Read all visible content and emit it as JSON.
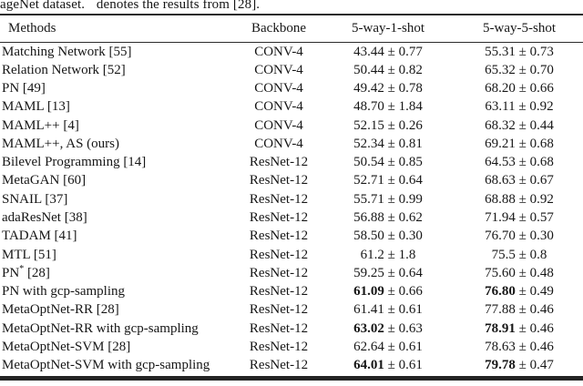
{
  "caption": {
    "before": "ageNet dataset. ",
    "star": "*",
    "after": " denotes the results from [28]."
  },
  "colors": {
    "ink": "#161616",
    "rule": "#2c2c2c",
    "background": "#ffffff"
  },
  "table": {
    "headers": {
      "method": "Methods",
      "backbone": "Backbone",
      "one_shot": "5-way-1-shot",
      "five_shot": "5-way-5-shot"
    },
    "rows": [
      {
        "method": "Matching Network [55]",
        "backbone": "CONV-4",
        "one_shot": {
          "mean": "43.44",
          "err": "± 0.77",
          "bold": false
        },
        "five_shot": {
          "mean": "55.31",
          "err": "± 0.73",
          "bold": false
        }
      },
      {
        "method": "Relation Network [52]",
        "backbone": "CONV-4",
        "one_shot": {
          "mean": "50.44",
          "err": "± 0.82",
          "bold": false
        },
        "five_shot": {
          "mean": "65.32",
          "err": "± 0.70",
          "bold": false
        }
      },
      {
        "method": "PN [49]",
        "backbone": "CONV-4",
        "one_shot": {
          "mean": "49.42",
          "err": "± 0.78",
          "bold": false
        },
        "five_shot": {
          "mean": "68.20",
          "err": "± 0.66",
          "bold": false
        }
      },
      {
        "method": "MAML [13]",
        "backbone": "CONV-4",
        "one_shot": {
          "mean": "48.70",
          "err": "± 1.84",
          "bold": false
        },
        "five_shot": {
          "mean": "63.11",
          "err": "± 0.92",
          "bold": false
        }
      },
      {
        "method": "MAML++ [4]",
        "backbone": "CONV-4",
        "one_shot": {
          "mean": "52.15",
          "err": "± 0.26",
          "bold": false
        },
        "five_shot": {
          "mean": "68.32",
          "err": "± 0.44",
          "bold": false
        }
      },
      {
        "method": "MAML++, AS (ours)",
        "backbone": "CONV-4",
        "one_shot": {
          "mean": "52.34",
          "err": "± 0.81",
          "bold": false
        },
        "five_shot": {
          "mean": "69.21",
          "err": "± 0.68",
          "bold": false
        }
      },
      {
        "method": "Bilevel Programming [14]",
        "backbone": "ResNet-12",
        "one_shot": {
          "mean": "50.54",
          "err": "± 0.85",
          "bold": false
        },
        "five_shot": {
          "mean": "64.53",
          "err": "± 0.68",
          "bold": false
        }
      },
      {
        "method": "MetaGAN [60]",
        "backbone": "ResNet-12",
        "one_shot": {
          "mean": "52.71",
          "err": "± 0.64",
          "bold": false
        },
        "five_shot": {
          "mean": "68.63",
          "err": "± 0.67",
          "bold": false
        }
      },
      {
        "method": "SNAIL [37]",
        "backbone": "ResNet-12",
        "one_shot": {
          "mean": "55.71",
          "err": "± 0.99",
          "bold": false
        },
        "five_shot": {
          "mean": "68.88",
          "err": "± 0.92",
          "bold": false
        }
      },
      {
        "method": "adaResNet [38]",
        "backbone": "ResNet-12",
        "one_shot": {
          "mean": "56.88",
          "err": "± 0.62",
          "bold": false
        },
        "five_shot": {
          "mean": "71.94",
          "err": "± 0.57",
          "bold": false
        }
      },
      {
        "method": "TADAM [41]",
        "backbone": "ResNet-12",
        "one_shot": {
          "mean": "58.50",
          "err": "± 0.30",
          "bold": false
        },
        "five_shot": {
          "mean": "76.70",
          "err": "± 0.30",
          "bold": false
        }
      },
      {
        "method": "MTL [51]",
        "backbone": "ResNet-12",
        "one_shot": {
          "mean": "61.2",
          "err": "± 1.8",
          "bold": false
        },
        "five_shot": {
          "mean": "75.5",
          "err": "± 0.8",
          "bold": false
        }
      },
      {
        "method": "PN* [28]",
        "backbone": "ResNet-12",
        "one_shot": {
          "mean": "59.25",
          "err": "± 0.64",
          "bold": false
        },
        "five_shot": {
          "mean": "75.60",
          "err": "± 0.48",
          "bold": false
        }
      },
      {
        "method": "PN with gcp-sampling",
        "backbone": "ResNet-12",
        "one_shot": {
          "mean": "61.09",
          "err": "± 0.66",
          "bold": true
        },
        "five_shot": {
          "mean": "76.80",
          "err": "± 0.49",
          "bold": true
        }
      },
      {
        "method": "MetaOptNet-RR [28]",
        "backbone": "ResNet-12",
        "one_shot": {
          "mean": "61.41",
          "err": "± 0.61",
          "bold": false
        },
        "five_shot": {
          "mean": "77.88",
          "err": "± 0.46",
          "bold": false
        }
      },
      {
        "method": "MetaOptNet-RR with gcp-sampling",
        "backbone": "ResNet-12",
        "one_shot": {
          "mean": "63.02",
          "err": "± 0.63",
          "bold": true
        },
        "five_shot": {
          "mean": "78.91",
          "err": "± 0.46",
          "bold": true
        }
      },
      {
        "method": "MetaOptNet-SVM [28]",
        "backbone": "ResNet-12",
        "one_shot": {
          "mean": "62.64",
          "err": "± 0.61",
          "bold": false
        },
        "five_shot": {
          "mean": "78.63",
          "err": "± 0.46",
          "bold": false
        }
      },
      {
        "method": "MetaOptNet-SVM with gcp-sampling",
        "backbone": "ResNet-12",
        "one_shot": {
          "mean": "64.01",
          "err": "± 0.61",
          "bold": true
        },
        "five_shot": {
          "mean": "79.78",
          "err": "± 0.47",
          "bold": true
        }
      }
    ]
  }
}
